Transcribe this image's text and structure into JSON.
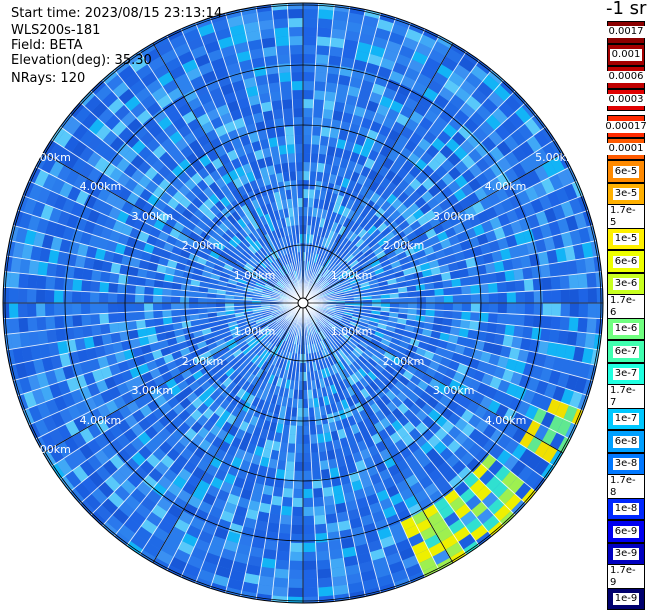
{
  "header": {
    "start_time": "Start time: 2023/08/15 23:13:14",
    "instrument": "WLS200s-181",
    "field": "Field: BETA",
    "elevation": "Elevation(deg): 35.30",
    "nrays": "NRays: 120"
  },
  "units_label": "-1 sr",
  "range_rings": {
    "labels": [
      "1.00km",
      "2.00km",
      "3.00km",
      "4.00km",
      "5.00km"
    ]
  },
  "colorbar": {
    "high_group": [
      {
        "label": "0.0017",
        "color": "#8b0000"
      },
      {
        "label": "0.001",
        "color": "#a40000"
      },
      {
        "label": "0.0006",
        "color": "#c00000"
      },
      {
        "label": "0.0003",
        "color": "#e00000"
      }
    ],
    "main_group": [
      {
        "label": "0.00017",
        "color": "#ff2a00"
      },
      {
        "label": "0.0001",
        "color": "#ff5a00"
      },
      {
        "label": "6e-5",
        "color": "#ff8a00"
      },
      {
        "label": "3e-5",
        "color": "#ffb000"
      },
      {
        "label": "1.7e-5",
        "color": "#ffd500"
      },
      {
        "label": "1e-5",
        "color": "#fff000"
      },
      {
        "label": "6e-6",
        "color": "#eeff00"
      },
      {
        "label": "3e-6",
        "color": "#c8ff20"
      },
      {
        "label": "1.7e-6",
        "color": "#a0ff50"
      },
      {
        "label": "1e-6",
        "color": "#70ff80"
      },
      {
        "label": "6e-7",
        "color": "#40ffb0"
      },
      {
        "label": "3e-7",
        "color": "#20ffe0"
      },
      {
        "label": "1.7e-7",
        "color": "#00f0ff"
      },
      {
        "label": "1e-7",
        "color": "#00c8ff"
      },
      {
        "label": "6e-8",
        "color": "#00a0ff"
      },
      {
        "label": "3e-8",
        "color": "#0078ff"
      },
      {
        "label": "1.7e-8",
        "color": "#0050ff"
      },
      {
        "label": "1e-8",
        "color": "#0028ff"
      },
      {
        "label": "6e-9",
        "color": "#0000f0"
      },
      {
        "label": "3e-9",
        "color": "#0000c0"
      },
      {
        "label": "1.7e-9",
        "color": "#000096"
      },
      {
        "label": "1e-9",
        "color": "#00006e"
      }
    ]
  },
  "colors": {
    "background": "#ffffff",
    "plot_base": "#2f7fe8",
    "ring_line": "#000000",
    "gate_gap": "#ffffff",
    "range_label": "#ffffff"
  }
}
